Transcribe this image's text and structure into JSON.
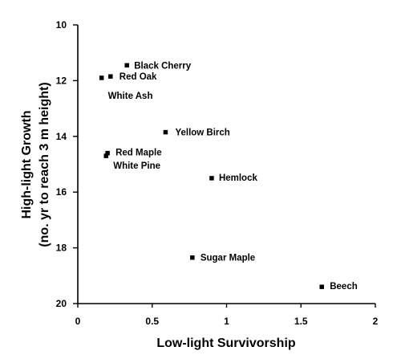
{
  "chart_data": {
    "type": "scatter",
    "title": "",
    "xlabel": "Low-light Survivorship",
    "ylabel_lines": [
      "High-light Growth",
      "(no. yr to reach 3 m height)"
    ],
    "xlim": [
      0,
      2
    ],
    "ylim": [
      10,
      20
    ],
    "y_inverted": true,
    "grid": false,
    "x_ticks": [
      0,
      0.5,
      1,
      1.5,
      2
    ],
    "x_tick_labels": [
      "0",
      "0.5",
      "1",
      "1.5",
      "2"
    ],
    "y_ticks": [
      10,
      12,
      14,
      16,
      18,
      20
    ],
    "y_tick_labels": [
      "10",
      "12",
      "14",
      "16",
      "18",
      "20"
    ],
    "marker_color": "#000000",
    "points": [
      {
        "label": "Black Cherry",
        "x": 0.33,
        "y": 11.45
      },
      {
        "label": "Red Oak",
        "x": 0.22,
        "y": 11.85
      },
      {
        "label": "White Ash",
        "x": 0.16,
        "y": 11.9
      },
      {
        "label": "Yellow Birch",
        "x": 0.59,
        "y": 13.85
      },
      {
        "label": "Red Maple",
        "x": 0.2,
        "y": 14.6
      },
      {
        "label": "White Pine",
        "x": 0.19,
        "y": 14.7
      },
      {
        "label": "Hemlock",
        "x": 0.9,
        "y": 15.5
      },
      {
        "label": "Sugar Maple",
        "x": 0.77,
        "y": 18.35
      },
      {
        "label": "Beech",
        "x": 1.64,
        "y": 19.4
      }
    ]
  }
}
